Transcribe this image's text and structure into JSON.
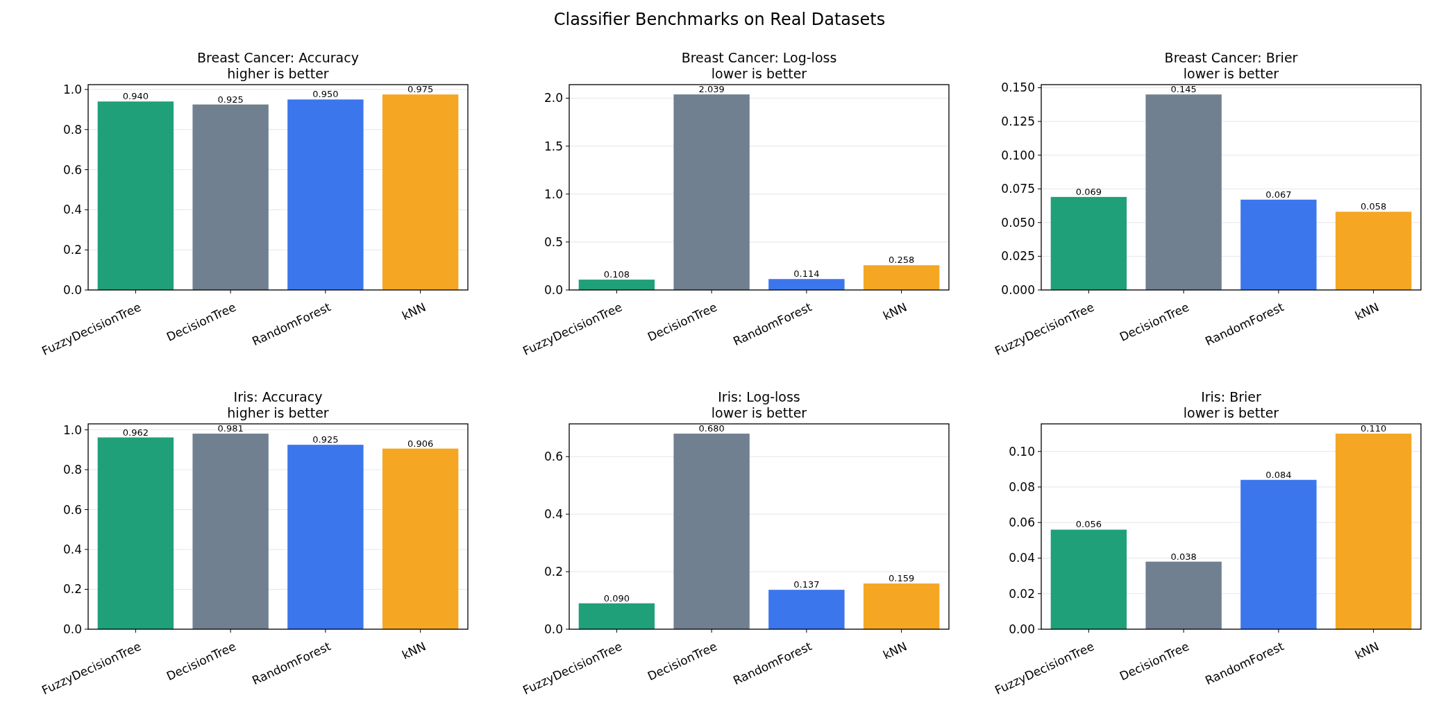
{
  "chart_data": [
    {
      "type": "bar",
      "title": "Breast Cancer: Accuracy",
      "subtitle": "higher is better",
      "annotations": [
        "Classifier Benchmarks on Real Datasets"
      ],
      "categories": [
        "FuzzyDecisionTree",
        "DecisionTree",
        "RandomForest",
        "kNN"
      ],
      "values": [
        0.94,
        0.925,
        0.95,
        0.975
      ],
      "value_labels": [
        "0.940",
        "0.925",
        "0.950",
        "0.975"
      ],
      "colors": [
        "#1fa078",
        "#708090",
        "#3b76ed",
        "#f5a623"
      ],
      "ylim": [
        0,
        1.024
      ],
      "yticks": [
        {
          "value": 0,
          "label": "0.0"
        },
        {
          "value": 0.2,
          "label": "0.2"
        },
        {
          "value": 0.4,
          "label": "0.4"
        },
        {
          "value": 0.6,
          "label": "0.6"
        },
        {
          "value": 0.8,
          "label": "0.8"
        },
        {
          "value": 1,
          "label": "1.0"
        }
      ],
      "grid": "y"
    },
    {
      "type": "bar",
      "title": "Breast Cancer: Log-loss",
      "subtitle": "lower is better",
      "categories": [
        "FuzzyDecisionTree",
        "DecisionTree",
        "RandomForest",
        "kNN"
      ],
      "values": [
        0.108,
        2.039,
        0.114,
        0.258
      ],
      "value_labels": [
        "0.108",
        "2.039",
        "0.114",
        "0.258"
      ],
      "colors": [
        "#1fa078",
        "#708090",
        "#3b76ed",
        "#f5a623"
      ],
      "ylim": [
        0,
        2.141
      ],
      "yticks": [
        {
          "value": 0,
          "label": "0.0"
        },
        {
          "value": 0.5,
          "label": "0.5"
        },
        {
          "value": 1,
          "label": "1.0"
        },
        {
          "value": 1.5,
          "label": "1.5"
        },
        {
          "value": 2,
          "label": "2.0"
        }
      ],
      "grid": "y"
    },
    {
      "type": "bar",
      "title": "Breast Cancer: Brier",
      "subtitle": "lower is better",
      "categories": [
        "FuzzyDecisionTree",
        "DecisionTree",
        "RandomForest",
        "kNN"
      ],
      "values": [
        0.069,
        0.145,
        0.067,
        0.058
      ],
      "value_labels": [
        "0.069",
        "0.145",
        "0.067",
        "0.058"
      ],
      "colors": [
        "#1fa078",
        "#708090",
        "#3b76ed",
        "#f5a623"
      ],
      "ylim": [
        0,
        0.1523
      ],
      "yticks": [
        {
          "value": 0,
          "label": "0.000"
        },
        {
          "value": 0.025,
          "label": "0.025"
        },
        {
          "value": 0.05,
          "label": "0.050"
        },
        {
          "value": 0.075,
          "label": "0.075"
        },
        {
          "value": 0.1,
          "label": "0.100"
        },
        {
          "value": 0.125,
          "label": "0.125"
        },
        {
          "value": 0.15,
          "label": "0.150"
        }
      ],
      "grid": "y"
    },
    {
      "type": "bar",
      "title": "Iris: Accuracy",
      "subtitle": "higher is better",
      "categories": [
        "FuzzyDecisionTree",
        "DecisionTree",
        "RandomForest",
        "kNN"
      ],
      "values": [
        0.962,
        0.981,
        0.925,
        0.906
      ],
      "value_labels": [
        "0.962",
        "0.981",
        "0.925",
        "0.906"
      ],
      "colors": [
        "#1fa078",
        "#708090",
        "#3b76ed",
        "#f5a623"
      ],
      "ylim": [
        0,
        1.03
      ],
      "yticks": [
        {
          "value": 0,
          "label": "0.0"
        },
        {
          "value": 0.2,
          "label": "0.2"
        },
        {
          "value": 0.4,
          "label": "0.4"
        },
        {
          "value": 0.6,
          "label": "0.6"
        },
        {
          "value": 0.8,
          "label": "0.8"
        },
        {
          "value": 1,
          "label": "1.0"
        }
      ],
      "grid": "y"
    },
    {
      "type": "bar",
      "title": "Iris: Log-loss",
      "subtitle": "lower is better",
      "categories": [
        "FuzzyDecisionTree",
        "DecisionTree",
        "RandomForest",
        "kNN"
      ],
      "values": [
        0.09,
        0.68,
        0.137,
        0.159
      ],
      "value_labels": [
        "0.090",
        "0.680",
        "0.137",
        "0.159"
      ],
      "colors": [
        "#1fa078",
        "#708090",
        "#3b76ed",
        "#f5a623"
      ],
      "ylim": [
        0,
        0.714
      ],
      "yticks": [
        {
          "value": 0,
          "label": "0.0"
        },
        {
          "value": 0.2,
          "label": "0.2"
        },
        {
          "value": 0.4,
          "label": "0.4"
        },
        {
          "value": 0.6,
          "label": "0.6"
        }
      ],
      "grid": "y"
    },
    {
      "type": "bar",
      "title": "Iris: Brier",
      "subtitle": "lower is better",
      "categories": [
        "FuzzyDecisionTree",
        "DecisionTree",
        "RandomForest",
        "kNN"
      ],
      "values": [
        0.056,
        0.038,
        0.084,
        0.11
      ],
      "value_labels": [
        "0.056",
        "0.038",
        "0.084",
        "0.110"
      ],
      "colors": [
        "#1fa078",
        "#708090",
        "#3b76ed",
        "#f5a623"
      ],
      "ylim": [
        0,
        0.1155
      ],
      "yticks": [
        {
          "value": 0,
          "label": "0.00"
        },
        {
          "value": 0.02,
          "label": "0.02"
        },
        {
          "value": 0.04,
          "label": "0.04"
        },
        {
          "value": 0.06,
          "label": "0.06"
        },
        {
          "value": 0.08,
          "label": "0.08"
        },
        {
          "value": 0.1,
          "label": "0.10"
        }
      ],
      "grid": "y"
    }
  ]
}
